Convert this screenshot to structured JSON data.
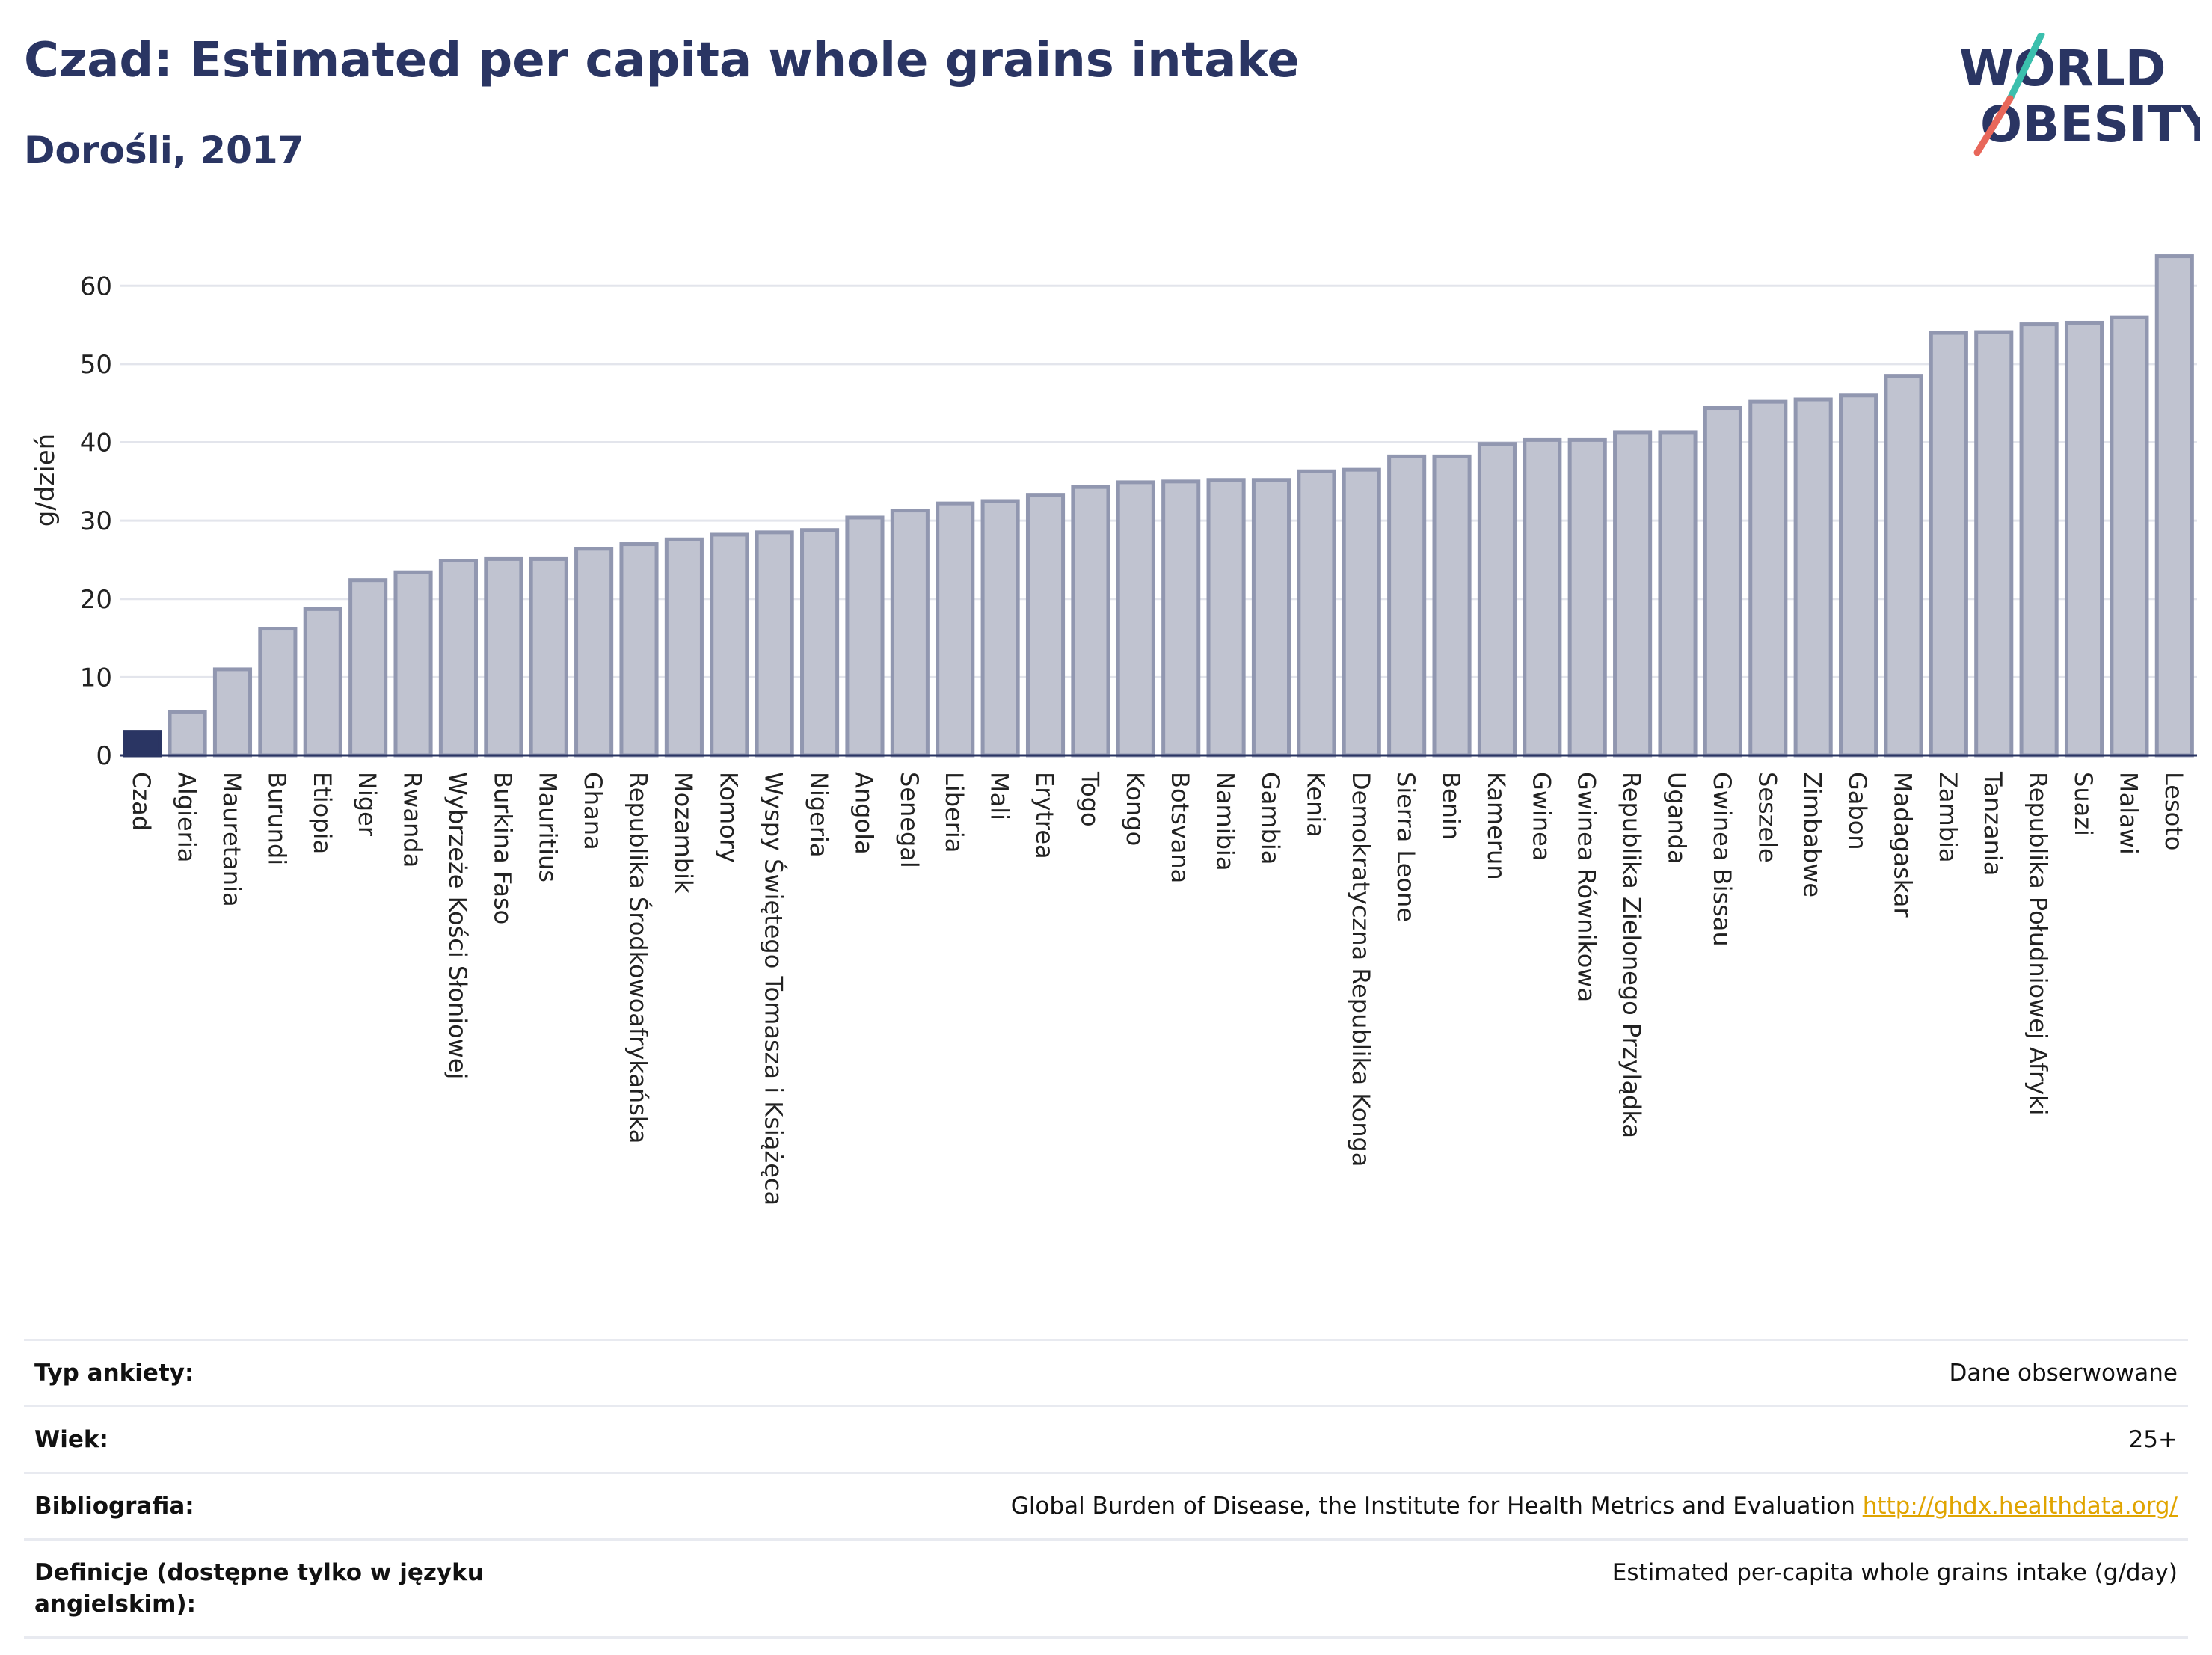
{
  "header": {
    "title": "Czad: Estimated per capita whole grains intake",
    "subtitle": "Dorośli, 2017",
    "logo_line1": "WORLD",
    "logo_line2": "OBESITY"
  },
  "colors": {
    "highlight": "#2a3563",
    "bar_fill": "#c0c3d0",
    "bar_stroke": "#9197b0",
    "logo_text": "#2a3563",
    "logo_teal": "#3bbfad",
    "logo_red": "#e8675a"
  },
  "chart_data": {
    "type": "bar",
    "ylabel": "g/dzień",
    "ylim": [
      0,
      65
    ],
    "yticks": [
      0,
      10,
      20,
      30,
      40,
      50,
      60
    ],
    "grid": true,
    "highlight_category": "Czad",
    "categories": [
      "Czad",
      "Algieria",
      "Mauretania",
      "Burundi",
      "Etiopia",
      "Niger",
      "Rwanda",
      "Wybrzeże Kości Słoniowej",
      "Burkina Faso",
      "Mauritius",
      "Ghana",
      "Republika Środkowoafrykańska",
      "Mozambik",
      "Komory",
      "Wyspy Świętego Tomasza i Książęca",
      "Nigeria",
      "Angola",
      "Senegal",
      "Liberia",
      "Mali",
      "Erytrea",
      "Togo",
      "Kongo",
      "Botsvana",
      "Namibia",
      "Gambia",
      "Kenia",
      "Demokratyczna Republika Konga",
      "Sierra Leone",
      "Benin",
      "Kamerun",
      "Gwinea",
      "Gwinea Równikowa",
      "Republika Zielonego Przylądka",
      "Uganda",
      "Gwinea Bissau",
      "Seszele",
      "Zimbabwe",
      "Gabon",
      "Madagaskar",
      "Zambia",
      "Tanzania",
      "Republika Południowej Afryki",
      "Suazi",
      "Malawi",
      "Lesoto"
    ],
    "values": [
      3.0,
      5.5,
      11.0,
      16.2,
      18.7,
      22.4,
      23.4,
      24.9,
      25.1,
      25.1,
      26.4,
      27.0,
      27.6,
      28.2,
      28.5,
      28.8,
      30.4,
      31.3,
      32.2,
      32.5,
      33.3,
      34.3,
      34.9,
      35.0,
      35.2,
      35.2,
      36.3,
      36.5,
      38.2,
      38.2,
      39.8,
      40.3,
      40.3,
      41.3,
      41.3,
      44.4,
      45.2,
      45.5,
      46.0,
      48.5,
      54.0,
      54.1,
      55.1,
      55.3,
      56.0,
      63.8
    ]
  },
  "info": [
    {
      "label": "Typ ankiety:",
      "value": "Dane obserwowane"
    },
    {
      "label": "Wiek:",
      "value": "25+"
    },
    {
      "label": "Bibliografia:",
      "value": "Global Burden of Disease, the Institute for Health Metrics and Evaluation",
      "link": "http://ghdx.healthdata.org/"
    },
    {
      "label": "Definicje (dostępne tylko w języku angielskim):",
      "value": "Estimated per-capita whole grains intake (g/day)"
    }
  ]
}
